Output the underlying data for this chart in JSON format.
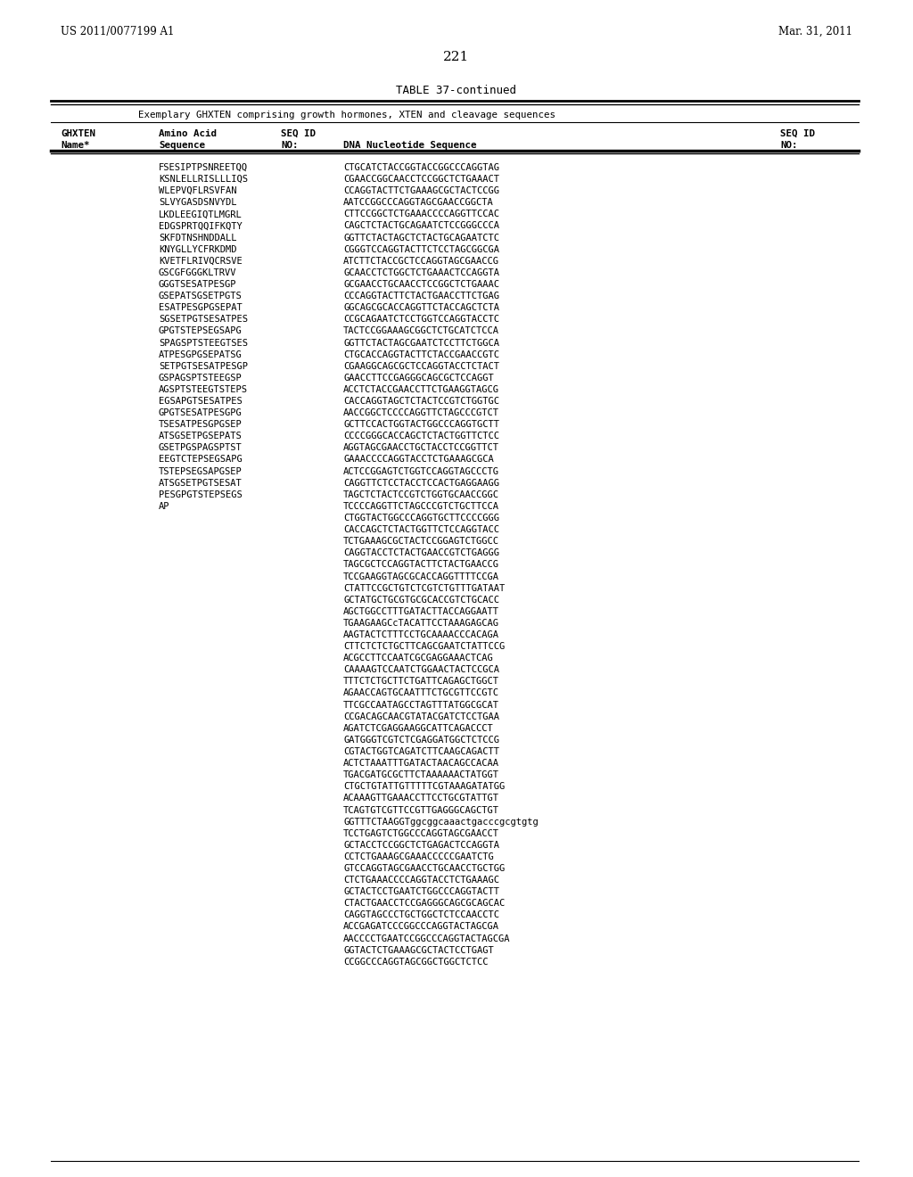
{
  "header_left": "US 2011/0077199 A1",
  "header_right": "Mar. 31, 2011",
  "page_number": "221",
  "table_title": "TABLE 37-continued",
  "table_subtitle": "Exemplary GHXTEN comprising growth hormones, XTEN and cleavage sequences",
  "col1_header_line1": "GHXTEN",
  "col1_header_line2": "Name*",
  "col2_header_line1": "Amino Acid",
  "col2_header_line2": "Sequence",
  "col3_header_line1": "SEQ ID",
  "col3_header_line2": "NO:",
  "col4_header_line1": "DNA Nucleotide Sequence",
  "col4_header_line2": "",
  "col5_header_line1": "SEQ ID",
  "col5_header_line2": "NO:",
  "amino_acids": [
    "FSESIPTPSNREETQQ",
    "KSNLELLRISLLLIQS",
    "WLEPVQFLRSVFAN",
    "SLVYGASDSNVYDL",
    "LKDLEEGIQTLMGRL",
    "EDGSPRTQQIFKQTY",
    "SKFDTNSHNDDALL",
    "KNYGLLYCFRKDMD",
    "KVETFLRIVQCRSVE",
    "GSCGFGGGKLTRVV",
    "GGGTSESATPESGP",
    "GSEPATSGSETPGTS",
    "ESATPESGPGSEPAT",
    "SGSETPGTSESATPES",
    "GPGTSTEPSEGSAPG",
    "SPAGSPTSTEEGТSES",
    "ATPESGPGSEPATSG",
    "SETPGTSESATPESGP",
    "GSPAGSPTSTEEGSP",
    "AGSPTSTEEGTSTEPS",
    "EGSAPGTSESATPES",
    "GPGTSESATPESGPG",
    "TSESATPESGPGSEP",
    "ATSGSETPGSEPATS",
    "GSETPGSPAGSPTST",
    "EEGTСТЕРSEGSAPG",
    "TSTEPSEGSAPGSEP",
    "ATSGSETPGTSESAT",
    "PESGPGTSTEPSEGS",
    "AP",
    "",
    "",
    "",
    "",
    "",
    "",
    "",
    "",
    "",
    "",
    "",
    "",
    "",
    "",
    "",
    "",
    "",
    "",
    "",
    "",
    "",
    "",
    "",
    "",
    "",
    "",
    "",
    "",
    "",
    "",
    "",
    "",
    "",
    "",
    "",
    "",
    "",
    ""
  ],
  "dna_sequences": [
    "CTGCATCTACCGGTACCGGCCCAGGTAG",
    "CGAACCGGCAACCTCCGGCTCTGAAACT",
    "CCAGGTACTTCTGAAAGCGCTACTCCGG",
    "AATCCGGCCCAGGTAGCGAACCGGCTA",
    "CTTCCGGCTCTGAAACCCCAGGTTCCAC",
    "CAGCTCTACTGCAGAATCTCCGGGCCCA",
    "GGTTCTACTAGCTCTACTGCAGAATCTC",
    "CGGGTCCAGGTACTTCTCCTAGCGGCGA",
    "ATCTTCTACCGCTCCAGGTAGCGAACCG",
    "GCAACCTCTGGCTCTGAAACTCCAGGTA",
    "GCGAACCTGCAACCTCCGGCTCTGAAAC",
    "CCCAGGTACTTCTACTGAACCTTCTGAG",
    "GGCAGCGCACCAGGTTCTACCAGCTCTA",
    "CCGCAGAATCTCCTGGTCCAGGTACCTC",
    "TACTCCGGAAAGCGGCTCTGCATCTCCA",
    "GGTTCTACTAGCGAATCTCCTTCTGGCA",
    "CTGCACCAGGTACTTCTACCGAACCGTC",
    "CGAAGGCAGCGCTCCAGGTACCTCTACT",
    "GAACCTTCCGAGGGCAGCGCTCCAGGT",
    "ACCTCTACCGAACCTTCTGAAGGTAGCG",
    "CACCAGGTAGCTCTACTCCGTCTGGTGC",
    "AACCGGCTCCCCAGGTTCTAGCCCGTCT",
    "GCTTCCACTGGTACTGGCCCAGGTGCTT",
    "CCCCGGGCACCAGCTCTACTGGTTCTCC",
    "AGGTAGCGAACCTGCTACCTCCGGTTCT",
    "GAAACCCCAGGTACCTCTGAAAGCGCA",
    "ACTCCGGAGTCTGGTCCAGGTAGCCCTG",
    "CAGGTTCTCCTACCTCCACTGAGGAAGG",
    "TAGCTCTACTCCGTCTGGTGCAACCGGC",
    "TCCCCAGGTTCTAGCCCGTCTGCTTCCA",
    "CTGGTACTGGCCCAGGTGCTTCCCCGGG",
    "CACCAGCTCTACTGGTTCTCCAGGTACC",
    "TCTGAAAGCGCTACTCCGGAGTCTGGCC",
    "CAGGTACCTCTACTGAACCGTCTGAGGG",
    "TAGCGCTCCAGGTACTTCTACTGAACCG",
    "TCCGAAGGTAGCGCACCAGGTTTTCCGA",
    "CTATTCCGCTGTCTCGTCTGTTTGATAAT",
    "GCTATGCTGCGTGCGCACCGTCTGCACC",
    "AGCTGGCCTTTGATACTTACCAGGAATT",
    "TGAAGAAGCcTACATTCCTAAAGAGCAG",
    "AAGTACTCTTTCCTGCAAAACCCACAGA",
    "CTTCTCTCTGCTTCAGCGAATCTATTCCG",
    "ACGCCTTCCAATCGCGAGGAAACTCAG",
    "CAAAAGTCCAATCTGGAACTACTCCGCA",
    "TTTCTCTGCTTCTGATTCAGAGCTGGCT",
    "AGAACCAGTGCAATTTCTGCGTTCCGTC",
    "TTCGCCAATAGCCTAGTTTATGGCGCAT",
    "CCGACAGCAACGTATACGATCTCCTGAA",
    "AGATCTCGAGGAAGGCATTCAGACCCT",
    "GATGGGTCGTCTCGAGGATGGCTCTCCG",
    "CGTACTGGTCAGATCTTCAAGCAGACTT",
    "ACTCTAAATTTGATACTAACAGCCACAA",
    "TGACGATGCGCTTCTAAAAAACTATGGT",
    "CTGCTGTATTGTTTTTCGTAAAGATATGG",
    "ACAAAGTTGAAACCTTCCTGCGTATTGT",
    "TCAGTGTCGTTCCGTTGAGGGCAGCTGT",
    "GGTTTCTAAGGTggcggcaaactgacccgcgtgtg",
    "TCCTGAGTCTGGCCCAGGTAGCGAACCT",
    "GCTACCTCCGGCTCTGAGACTCCAGGTA",
    "CCTCTGAAAGCGAAACCCCCGAATCTG",
    "GTCCAGGTAGCGAACCTGCAACCTGCTGG",
    "CTCTGAAACCCCAGGTACCTCTGAAAGC",
    "GCTACTCCTGAATCTGGCCCAGGTACTT",
    "CTACTGAACCTCCGAGGGCAGCGCAGCAC",
    "CAGGTAGCCCTGCTGGCTCTCCAACCTC",
    "ACCGAGATCCCGGCCCAGGTACTAGCGA",
    "AACCCCTGAATCCGGCCCAGGTACTAGCGA",
    "GGTACTCTGAAAGCGCTACTCCTGAGT",
    "CCGGCCCAGGTAGCGGCTGGCTCTCC"
  ],
  "background_color": "#ffffff"
}
